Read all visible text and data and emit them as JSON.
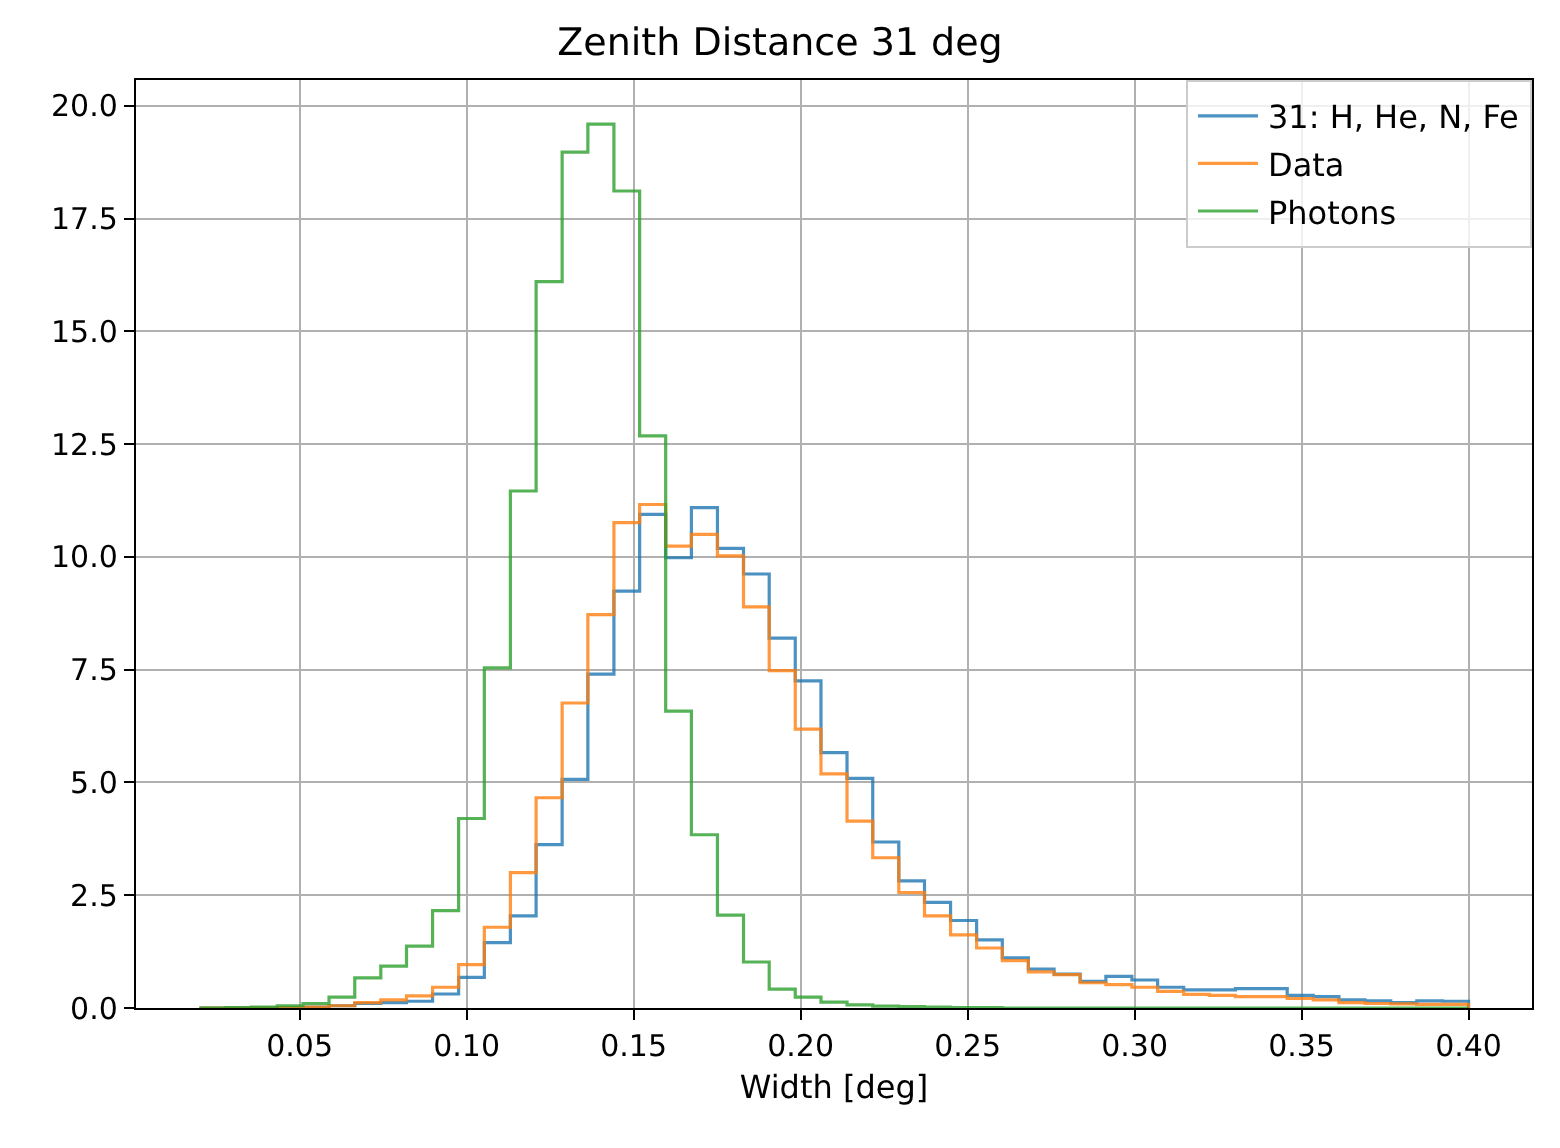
{
  "chart_data": {
    "type": "histogram",
    "title": "Zenith Distance 31 deg",
    "xlabel": "Width [deg]",
    "bins": [
      0.02,
      0.0278,
      0.0355,
      0.0433,
      0.051,
      0.0588,
      0.0665,
      0.0743,
      0.082,
      0.0898,
      0.0976,
      0.1053,
      0.1131,
      0.1208,
      0.1286,
      0.1363,
      0.1441,
      0.1518,
      0.1596,
      0.1673,
      0.1751,
      0.1829,
      0.1906,
      0.1984,
      0.2061,
      0.2139,
      0.2216,
      0.2294,
      0.2371,
      0.2449,
      0.2527,
      0.2604,
      0.2682,
      0.2759,
      0.2837,
      0.2914,
      0.2992,
      0.3069,
      0.3147,
      0.3224,
      0.3302,
      0.338,
      0.3457,
      0.3535,
      0.3612,
      0.369,
      0.3767,
      0.3845,
      0.3922,
      0.4
    ],
    "series": [
      {
        "name": "31: H, He, N, Fe",
        "color": "#1f77b4",
        "values": [
          0,
          0,
          0,
          0.01,
          0.02,
          0.05,
          0.1,
          0.12,
          0.15,
          0.31,
          0.68,
          1.45,
          2.04,
          3.62,
          5.07,
          7.4,
          9.24,
          10.94,
          9.98,
          11.09,
          10.19,
          9.62,
          8.2,
          7.25,
          5.66,
          5.09,
          3.68,
          2.82,
          2.34,
          1.94,
          1.51,
          1.11,
          0.86,
          0.75,
          0.59,
          0.7,
          0.62,
          0.46,
          0.4,
          0.4,
          0.43,
          0.43,
          0.28,
          0.25,
          0.18,
          0.16,
          0.12,
          0.16,
          0.15
        ]
      },
      {
        "name": "Data",
        "color": "#ff7f0e",
        "values": [
          0,
          0,
          0,
          0.01,
          0.02,
          0.05,
          0.12,
          0.18,
          0.27,
          0.46,
          0.96,
          1.79,
          3.0,
          4.66,
          6.76,
          8.72,
          10.76,
          11.16,
          10.24,
          10.5,
          10.02,
          8.89,
          7.48,
          6.18,
          5.19,
          4.14,
          3.33,
          2.56,
          2.04,
          1.62,
          1.33,
          1.05,
          0.8,
          0.74,
          0.56,
          0.52,
          0.46,
          0.37,
          0.3,
          0.28,
          0.25,
          0.25,
          0.21,
          0.18,
          0.12,
          0.1,
          0.09,
          0.08,
          0.08
        ]
      },
      {
        "name": "Photons",
        "color": "#2ca02c",
        "values": [
          0,
          0.01,
          0.02,
          0.05,
          0.1,
          0.24,
          0.67,
          0.93,
          1.37,
          2.16,
          4.2,
          7.54,
          11.46,
          16.1,
          18.97,
          19.59,
          18.11,
          12.68,
          6.58,
          3.84,
          2.06,
          1.02,
          0.42,
          0.24,
          0.13,
          0.07,
          0.04,
          0.03,
          0.02,
          0.01,
          0.01,
          0,
          0,
          0,
          0,
          0,
          0,
          0,
          0,
          0,
          0,
          0,
          0,
          0,
          0,
          0,
          0,
          0,
          0
        ]
      }
    ],
    "xlim": [
      0.001,
      0.419
    ],
    "xticks": [
      {
        "value": 0.05,
        "label": "0.05"
      },
      {
        "value": 0.1,
        "label": "0.10"
      },
      {
        "value": 0.15,
        "label": "0.15"
      },
      {
        "value": 0.2,
        "label": "0.20"
      },
      {
        "value": 0.25,
        "label": "0.25"
      },
      {
        "value": 0.3,
        "label": "0.30"
      },
      {
        "value": 0.35,
        "label": "0.35"
      },
      {
        "value": 0.4,
        "label": "0.40"
      }
    ],
    "ylim": [
      0,
      20.57
    ],
    "yticks": [
      {
        "value": 0,
        "label": "0.0"
      },
      {
        "value": 2.5,
        "label": "2.5"
      },
      {
        "value": 5,
        "label": "5.0"
      },
      {
        "value": 7.5,
        "label": "7.5"
      },
      {
        "value": 10,
        "label": "10.0"
      },
      {
        "value": 12.5,
        "label": "12.5"
      },
      {
        "value": 15,
        "label": "15.0"
      },
      {
        "value": 17.5,
        "label": "17.5"
      },
      {
        "value": 20,
        "label": "20.0"
      }
    ],
    "grid": true,
    "legend": "top right"
  }
}
